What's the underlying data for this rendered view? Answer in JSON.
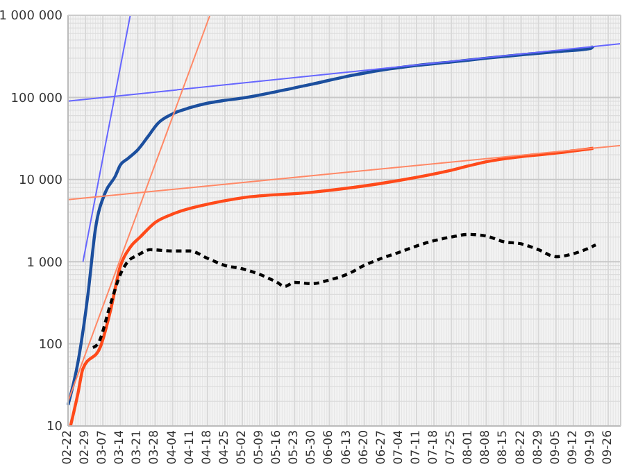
{
  "chart_data": {
    "type": "line",
    "log": "y",
    "grid": true,
    "marker": "none",
    "xlim": [
      "--02-22",
      "--10-01"
    ],
    "xticks": [
      {
        "value": "--02-22",
        "label": "02-22"
      },
      {
        "value": "--02-29",
        "label": "02-29"
      },
      {
        "value": "--03-07",
        "label": "03-07"
      },
      {
        "value": "--03-14",
        "label": "03-14"
      },
      {
        "value": "--03-21",
        "label": "03-21"
      },
      {
        "value": "--03-28",
        "label": "03-28"
      },
      {
        "value": "--04-04",
        "label": "04-04"
      },
      {
        "value": "--04-11",
        "label": "04-11"
      },
      {
        "value": "--04-18",
        "label": "04-18"
      },
      {
        "value": "--04-25",
        "label": "04-25"
      },
      {
        "value": "--05-02",
        "label": "05-02"
      },
      {
        "value": "--05-09",
        "label": "05-09"
      },
      {
        "value": "--05-16",
        "label": "05-16"
      },
      {
        "value": "--05-23",
        "label": "05-23"
      },
      {
        "value": "--05-30",
        "label": "05-30"
      },
      {
        "value": "--06-06",
        "label": "06-06"
      },
      {
        "value": "--06-13",
        "label": "06-13"
      },
      {
        "value": "--06-20",
        "label": "06-20"
      },
      {
        "value": "--06-27",
        "label": "06-27"
      },
      {
        "value": "--07-04",
        "label": "07-04"
      },
      {
        "value": "--07-11",
        "label": "07-11"
      },
      {
        "value": "--07-18",
        "label": "07-18"
      },
      {
        "value": "--07-25",
        "label": "07-25"
      },
      {
        "value": "--08-01",
        "label": "08-01"
      },
      {
        "value": "--08-08",
        "label": "08-08"
      },
      {
        "value": "--08-15",
        "label": "08-15"
      },
      {
        "value": "--08-22",
        "label": "08-22"
      },
      {
        "value": "--08-29",
        "label": "08-29"
      },
      {
        "value": "--09-05",
        "label": "09-05"
      },
      {
        "value": "--09-12",
        "label": "09-12"
      },
      {
        "value": "--09-19",
        "label": "09-19"
      },
      {
        "value": "--09-26",
        "label": "09-26"
      }
    ],
    "ylim": [
      10,
      1000000
    ],
    "yticks": [
      10,
      100,
      {
        "value": 1000,
        "label": "1 000"
      },
      {
        "value": 10000,
        "label": "10 000"
      },
      {
        "value": 100000,
        "label": "100 000"
      },
      {
        "value": 1000000,
        "label": "1 000 000"
      }
    ],
    "series": [
      {
        "color": "#1c4f9e",
        "line_style": "solid",
        "x": [
          "--02-22",
          "--02-26",
          "--03-01",
          "--03-04",
          "--03-08",
          "--03-12",
          "--03-14",
          "--03-17",
          "--03-21",
          "--03-25",
          "--03-29",
          "--04-04",
          "--04-11",
          "--04-18",
          "--04-25",
          "--05-02",
          "--05-16",
          "--05-30",
          "--06-13",
          "--06-27",
          "--07-11",
          "--07-25",
          "--08-08",
          "--08-22",
          "--09-05",
          "--09-19",
          "--09-20"
        ],
        "values": [
          18,
          60,
          400,
          2500,
          7000,
          11000,
          15000,
          18000,
          23000,
          33000,
          48000,
          63000,
          75000,
          85000,
          92000,
          98000,
          118000,
          145000,
          180000,
          215000,
          245000,
          270000,
          300000,
          330000,
          360000,
          395000,
          420000
        ]
      },
      {
        "color": "#ff4a1a",
        "line_style": "solid",
        "x": [
          "--02-23",
          "--02-26",
          "--02-28",
          "--03-06",
          "--03-10",
          "--03-14",
          "--03-18",
          "--03-22",
          "--03-28",
          "--04-04",
          "--04-18",
          "--05-02",
          "--05-30",
          "--06-27",
          "--07-25",
          "--08-08",
          "--08-22",
          "--09-05",
          "--09-20"
        ],
        "values": [
          10,
          25,
          50,
          92,
          250,
          880,
          1500,
          2000,
          3000,
          3800,
          5000,
          6000,
          7000,
          9000,
          13000,
          16500,
          19000,
          21000,
          24000
        ]
      },
      {
        "color": "#000000",
        "line_style": "dashed",
        "x": [
          "--03-03",
          "--03-05",
          "--03-10",
          "--03-14",
          "--03-17",
          "--03-21",
          "--03-26",
          "--04-04",
          "--04-11",
          "--04-18",
          "--04-25",
          "--05-02",
          "--05-09",
          "--05-16",
          "--05-19",
          "--05-23",
          "--05-30",
          "--06-06",
          "--06-13",
          "--06-20",
          "--06-27",
          "--07-04",
          "--07-11",
          "--07-18",
          "--07-25",
          "--08-01",
          "--08-08",
          "--08-15",
          "--08-22",
          "--08-29",
          "--09-05",
          "--09-12",
          "--09-19",
          "--09-21"
        ],
        "values": [
          90,
          100,
          300,
          700,
          1000,
          1200,
          1400,
          1350,
          1350,
          1100,
          900,
          820,
          700,
          560,
          500,
          560,
          540,
          600,
          700,
          900,
          1100,
          1300,
          1550,
          1800,
          2000,
          2150,
          2050,
          1750,
          1650,
          1400,
          1150,
          1250,
          1500,
          1600
        ]
      },
      {
        "color": "#6666ff",
        "line_style": "solid",
        "x": [
          "--02-28",
          "--03-18"
        ],
        "values": [
          1000,
          1000000
        ]
      },
      {
        "color": "#6666ff",
        "line_style": "solid",
        "x": [
          "--02-22",
          "--10-01"
        ],
        "values": [
          90000,
          450000
        ]
      },
      {
        "color": "#ff8866",
        "line_style": "solid",
        "x": [
          "--02-22",
          "--04-19"
        ],
        "values": [
          20,
          1000000
        ]
      },
      {
        "color": "#ff8866",
        "line_style": "solid",
        "x": [
          "--02-22",
          "--10-01"
        ],
        "values": [
          5700,
          26000
        ]
      }
    ]
  }
}
